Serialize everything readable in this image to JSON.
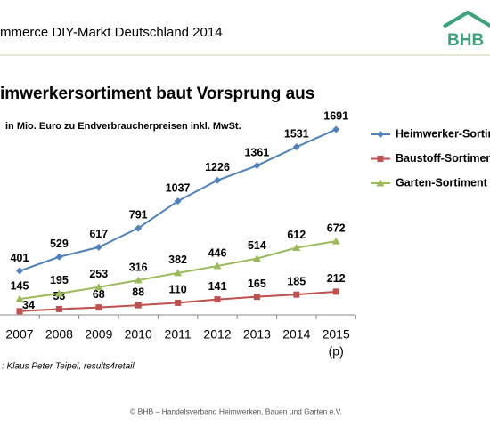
{
  "header": {
    "title": "mmerce DIY-Markt Deutschland 2014",
    "logo": "BHB"
  },
  "chart_data": {
    "type": "line",
    "title": "imwerkersortiment baut Vorsprung aus",
    "subtitle": "in Mio. Euro zu Endverbraucherpreisen inkl. MwSt.",
    "categories": [
      "2007",
      "2008",
      "2009",
      "2010",
      "2011",
      "2012",
      "2013",
      "2014",
      "2015"
    ],
    "category_note": "(p)",
    "ylim": [
      0,
      1800
    ],
    "series": [
      {
        "name": "Heimwerker-Sortim",
        "color": "#4f81bd",
        "marker": "diamond",
        "values": [
          401,
          529,
          617,
          791,
          1037,
          1226,
          1361,
          1531,
          1691
        ]
      },
      {
        "name": "Baustoff-Sortiment",
        "color": "#c0504d",
        "marker": "square",
        "values": [
          34,
          53,
          68,
          88,
          110,
          141,
          165,
          185,
          212
        ]
      },
      {
        "name": "Garten-Sortiment",
        "color": "#9bbb59",
        "marker": "triangle",
        "values": [
          145,
          195,
          253,
          316,
          382,
          446,
          514,
          612,
          672
        ]
      }
    ],
    "source": ": Klaus Peter Teipel, results4retail"
  },
  "footer": "© BHB – Handelsverband Heimwerken, Bauen und Garten e.V."
}
